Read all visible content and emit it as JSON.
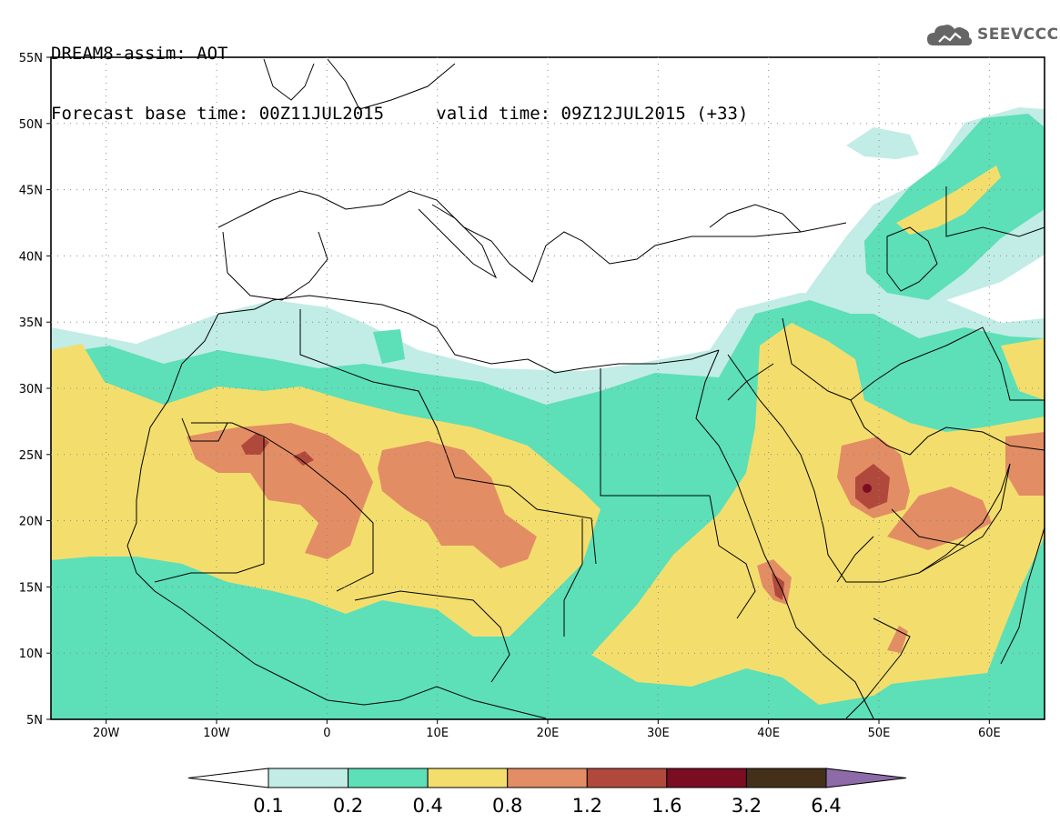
{
  "header": {
    "line1": "DREAM8-assim: AOT",
    "base_label": "Forecast base time: 00Z11JUL2015",
    "valid_label": "valid time: 09Z12JUL2015 (+33)"
  },
  "logo": {
    "text": "SEEVCCC",
    "icon": "cloud-icon"
  },
  "map": {
    "lon_range": [
      -25,
      65
    ],
    "lat_range": [
      5,
      55
    ],
    "lat_ticks": [
      {
        "v": 55,
        "t": "55N"
      },
      {
        "v": 50,
        "t": "50N"
      },
      {
        "v": 45,
        "t": "45N"
      },
      {
        "v": 40,
        "t": "40N"
      },
      {
        "v": 35,
        "t": "35N"
      },
      {
        "v": 30,
        "t": "30N"
      },
      {
        "v": 25,
        "t": "25N"
      },
      {
        "v": 20,
        "t": "20N"
      },
      {
        "v": 15,
        "t": "15N"
      },
      {
        "v": 10,
        "t": "10N"
      },
      {
        "v": 5,
        "t": "5N"
      }
    ],
    "lon_ticks": [
      {
        "v": -20,
        "t": "20W"
      },
      {
        "v": -10,
        "t": "10W"
      },
      {
        "v": 0,
        "t": "0"
      },
      {
        "v": 10,
        "t": "10E"
      },
      {
        "v": 20,
        "t": "20E"
      },
      {
        "v": 30,
        "t": "30E"
      },
      {
        "v": 40,
        "t": "40E"
      },
      {
        "v": 50,
        "t": "50E"
      },
      {
        "v": 60,
        "t": "60E"
      }
    ]
  },
  "colorbar": {
    "levels": [
      "0.1",
      "0.2",
      "0.4",
      "0.8",
      "1.2",
      "1.6",
      "3.2",
      "6.4"
    ],
    "colors": [
      "#ffffff",
      "#c2ece6",
      "#5ddfb7",
      "#f3de6d",
      "#e38d65",
      "#b0493c",
      "#7a0d22",
      "#44301a",
      "#8d6aa8"
    ]
  }
}
